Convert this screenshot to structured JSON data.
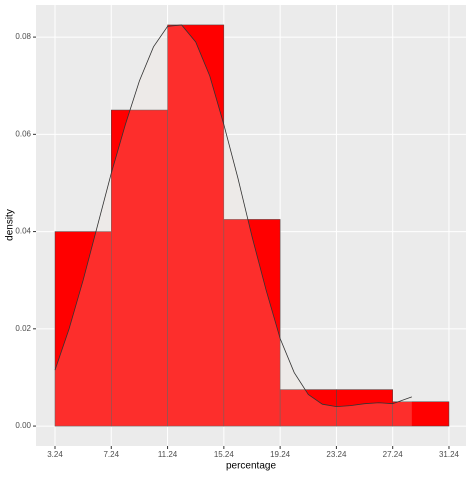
{
  "chart_data": {
    "type": "histogram",
    "x_label": "percentage",
    "y_label": "density",
    "bins": [
      3.24,
      7.24,
      11.24,
      15.24,
      19.24,
      23.24,
      27.24,
      31.24
    ],
    "values": [
      0.04,
      0.065,
      0.0825,
      0.0425,
      0.0075,
      0.0075,
      0.005
    ],
    "color": "#ff0000",
    "density": {
      "x": [
        3.24,
        4.24,
        5.24,
        6.24,
        7.24,
        8.24,
        9.24,
        10.24,
        11.24,
        12.24,
        13.24,
        14.24,
        15.24,
        16.24,
        17.24,
        18.24,
        19.24,
        20.24,
        21.24,
        22.24,
        23.24,
        24.24,
        25.24,
        26.24,
        27.24,
        28.6
      ],
      "values": [
        0.0115,
        0.02,
        0.03,
        0.041,
        0.052,
        0.062,
        0.071,
        0.078,
        0.0822,
        0.0825,
        0.079,
        0.072,
        0.062,
        0.051,
        0.039,
        0.028,
        0.018,
        0.011,
        0.0065,
        0.0045,
        0.004,
        0.0042,
        0.0046,
        0.0048,
        0.0046,
        0.006
      ],
      "fill": "#f5e8dc",
      "color": "#333333"
    },
    "xlim": [
      1.89,
      32.45
    ],
    "ylim": [
      -0.0041,
      0.0866
    ],
    "xticks": [
      3.24,
      7.24,
      11.24,
      15.24,
      19.24,
      23.24,
      27.24,
      31.24
    ],
    "yticks": [
      {
        "value": 0,
        "label": "0.00"
      },
      0.02,
      0.04,
      0.06,
      0.08
    ],
    "grid": true
  }
}
